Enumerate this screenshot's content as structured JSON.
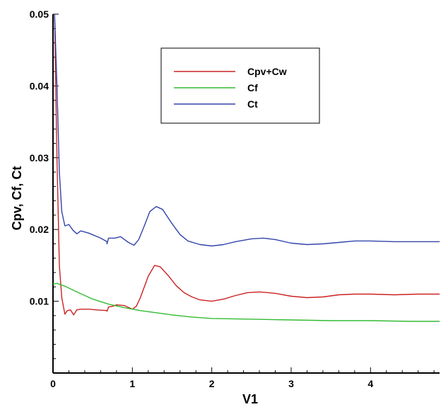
{
  "chart_data": {
    "type": "line",
    "title": "",
    "xlabel": "V1",
    "ylabel": "Cpv, Cf, Ct",
    "xlim": [
      0,
      4.87
    ],
    "ylim": [
      0.0,
      0.05
    ],
    "x_ticks": [
      "0",
      "1",
      "2",
      "3",
      "4"
    ],
    "y_ticks": [
      "0.01",
      "0.02",
      "0.03",
      "0.04",
      "0.05"
    ],
    "grid": false,
    "legend_position": "top-center",
    "series": [
      {
        "name": "Cpv+Cw",
        "color": "#cc2222",
        "points": [
          [
            0.02,
            0.05
          ],
          [
            0.05,
            0.03
          ],
          [
            0.08,
            0.015
          ],
          [
            0.11,
            0.0105
          ],
          [
            0.15,
            0.0082
          ],
          [
            0.18,
            0.0087
          ],
          [
            0.22,
            0.0088
          ],
          [
            0.26,
            0.0081
          ],
          [
            0.3,
            0.0088
          ],
          [
            0.35,
            0.0089
          ],
          [
            0.45,
            0.0089
          ],
          [
            0.55,
            0.0088
          ],
          [
            0.68,
            0.0087
          ],
          [
            0.68,
            0.0086
          ],
          [
            0.7,
            0.0092
          ],
          [
            0.75,
            0.0093
          ],
          [
            0.8,
            0.0095
          ],
          [
            0.9,
            0.0094
          ],
          [
            1.0,
            0.0089
          ],
          [
            1.05,
            0.0093
          ],
          [
            1.1,
            0.0105
          ],
          [
            1.2,
            0.0135
          ],
          [
            1.28,
            0.015
          ],
          [
            1.35,
            0.0148
          ],
          [
            1.45,
            0.0136
          ],
          [
            1.55,
            0.0122
          ],
          [
            1.65,
            0.0112
          ],
          [
            1.75,
            0.0106
          ],
          [
            1.85,
            0.0102
          ],
          [
            2.0,
            0.01
          ],
          [
            2.15,
            0.0103
          ],
          [
            2.3,
            0.0108
          ],
          [
            2.45,
            0.0112
          ],
          [
            2.6,
            0.0113
          ],
          [
            2.8,
            0.0111
          ],
          [
            3.0,
            0.0107
          ],
          [
            3.2,
            0.0105
          ],
          [
            3.4,
            0.0106
          ],
          [
            3.6,
            0.0109
          ],
          [
            3.8,
            0.011
          ],
          [
            4.0,
            0.011
          ],
          [
            4.3,
            0.0109
          ],
          [
            4.6,
            0.011
          ],
          [
            4.87,
            0.011
          ]
        ]
      },
      {
        "name": "Cf",
        "color": "#33bb33",
        "points": [
          [
            0.0,
            0.0124
          ],
          [
            0.05,
            0.0125
          ],
          [
            0.15,
            0.0121
          ],
          [
            0.3,
            0.0113
          ],
          [
            0.5,
            0.0103
          ],
          [
            0.7,
            0.0096
          ],
          [
            0.9,
            0.0091
          ],
          [
            1.1,
            0.0087
          ],
          [
            1.3,
            0.0084
          ],
          [
            1.5,
            0.0081
          ],
          [
            1.75,
            0.0078
          ],
          [
            2.0,
            0.0076
          ],
          [
            2.5,
            0.0075
          ],
          [
            3.0,
            0.0074
          ],
          [
            3.5,
            0.0073
          ],
          [
            4.0,
            0.0073
          ],
          [
            4.5,
            0.0072
          ],
          [
            4.87,
            0.0072
          ]
        ]
      },
      {
        "name": "Ct",
        "color": "#3344aa",
        "points": [
          [
            0.02,
            0.05
          ],
          [
            0.05,
            0.04
          ],
          [
            0.08,
            0.028
          ],
          [
            0.11,
            0.0225
          ],
          [
            0.15,
            0.0205
          ],
          [
            0.2,
            0.0207
          ],
          [
            0.25,
            0.0199
          ],
          [
            0.3,
            0.0194
          ],
          [
            0.35,
            0.0198
          ],
          [
            0.45,
            0.0195
          ],
          [
            0.6,
            0.0188
          ],
          [
            0.68,
            0.0183
          ],
          [
            0.68,
            0.018
          ],
          [
            0.7,
            0.0188
          ],
          [
            0.78,
            0.0188
          ],
          [
            0.85,
            0.019
          ],
          [
            0.95,
            0.0182
          ],
          [
            1.02,
            0.0178
          ],
          [
            1.08,
            0.0186
          ],
          [
            1.15,
            0.0205
          ],
          [
            1.22,
            0.0225
          ],
          [
            1.3,
            0.0232
          ],
          [
            1.38,
            0.0228
          ],
          [
            1.5,
            0.0208
          ],
          [
            1.6,
            0.0193
          ],
          [
            1.7,
            0.0184
          ],
          [
            1.85,
            0.0179
          ],
          [
            2.0,
            0.0177
          ],
          [
            2.15,
            0.0179
          ],
          [
            2.3,
            0.0183
          ],
          [
            2.5,
            0.0187
          ],
          [
            2.65,
            0.0188
          ],
          [
            2.8,
            0.0186
          ],
          [
            3.0,
            0.0181
          ],
          [
            3.2,
            0.0179
          ],
          [
            3.4,
            0.018
          ],
          [
            3.6,
            0.0182
          ],
          [
            3.8,
            0.0184
          ],
          [
            4.0,
            0.0184
          ],
          [
            4.3,
            0.0183
          ],
          [
            4.6,
            0.0183
          ],
          [
            4.87,
            0.0183
          ]
        ]
      }
    ]
  }
}
